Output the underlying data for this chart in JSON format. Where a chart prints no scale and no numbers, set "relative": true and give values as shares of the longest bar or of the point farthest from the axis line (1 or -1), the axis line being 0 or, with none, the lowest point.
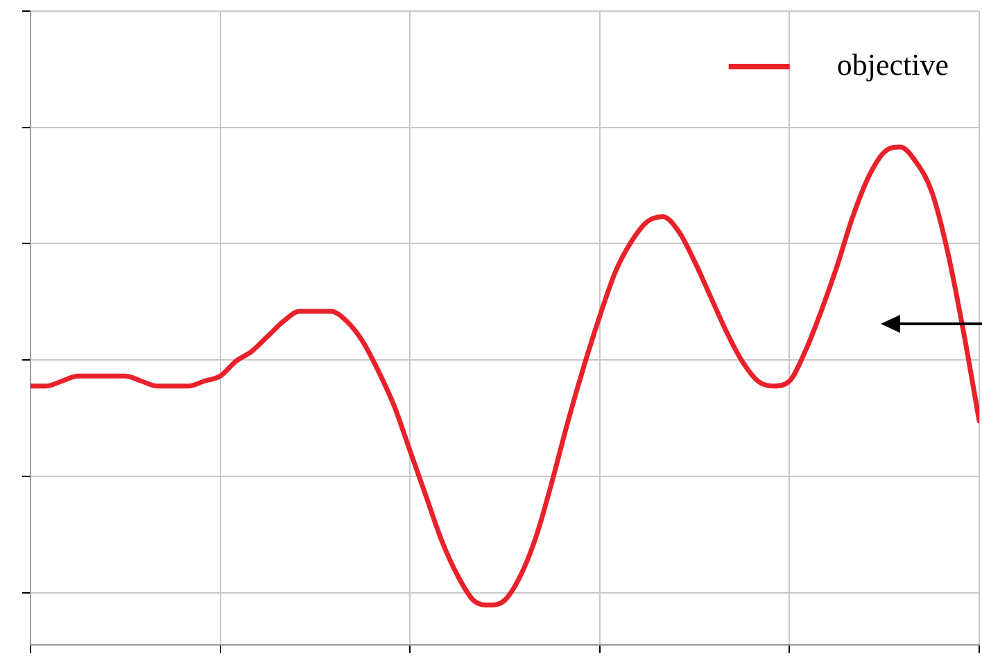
{
  "chart_data": {
    "type": "line",
    "relative": true,
    "grid": true,
    "tick_labels": false,
    "legend": "top right",
    "marker": "none",
    "line_style": "solid",
    "categories": [
      null,
      null,
      null,
      null,
      null,
      null,
      null,
      null,
      null,
      null,
      null,
      null,
      null,
      null,
      null,
      null,
      null,
      null,
      null,
      null,
      null,
      null,
      null,
      null,
      null,
      null,
      null,
      null,
      null,
      null,
      null,
      null,
      null,
      null,
      null,
      null,
      null,
      null,
      null,
      null,
      null,
      null,
      null,
      null,
      null,
      null,
      null,
      null,
      null,
      null,
      null,
      null,
      null,
      null,
      null,
      null,
      null,
      null,
      null,
      null,
      null
    ],
    "series": [
      {
        "name": "objective",
        "color": "#e8212b",
        "values": [
          0.52,
          0.52,
          0.53,
          0.54,
          0.54,
          0.54,
          0.54,
          0.53,
          0.52,
          0.52,
          0.52,
          0.53,
          0.54,
          0.57,
          0.59,
          0.62,
          0.65,
          0.67,
          0.67,
          0.67,
          0.65,
          0.61,
          0.55,
          0.48,
          0.39,
          0.3,
          0.21,
          0.14,
          0.09,
          0.08,
          0.09,
          0.14,
          0.22,
          0.33,
          0.45,
          0.56,
          0.66,
          0.75,
          0.81,
          0.85,
          0.86,
          0.83,
          0.77,
          0.7,
          0.63,
          0.57,
          0.53,
          0.52,
          0.53,
          0.59,
          0.67,
          0.76,
          0.86,
          0.94,
          0.99,
          1,
          0.97,
          0.91,
          0.79,
          0.63,
          0.45
        ]
      }
    ]
  }
}
